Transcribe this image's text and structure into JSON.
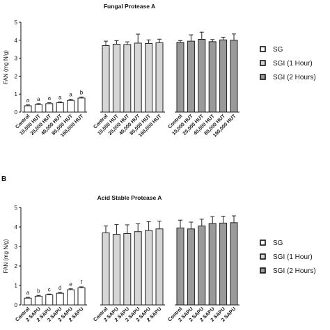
{
  "panel_b_label": "B",
  "legend": [
    {
      "label": "SG",
      "color": "#ffffff"
    },
    {
      "label": "SGI (1 Hour)",
      "color": "#d6d6d6"
    },
    {
      "label": "SGI (2 Hours)",
      "color": "#9a9a9a"
    }
  ],
  "chart_data": [
    {
      "type": "bar",
      "title": "Fungal Protease A",
      "ylabel": "FAN (mg N/g)",
      "ylim": [
        0,
        5
      ],
      "yticks": [
        "0",
        "1",
        "2",
        "3",
        "4",
        "5"
      ],
      "categories": [
        "Control",
        "10,000 HUT",
        "20,000 HUT",
        "40,000 HUT",
        "80,000 HUT",
        "160,000 HUT"
      ],
      "series": [
        {
          "name": "SG",
          "color": "#ffffff",
          "values": [
            0.35,
            0.42,
            0.47,
            0.52,
            0.65,
            0.78
          ],
          "errors": [
            0.05,
            0.05,
            0.05,
            0.05,
            0.06,
            0.06
          ],
          "letters": [
            "a",
            "a",
            "a",
            "a",
            "a",
            "b"
          ]
        },
        {
          "name": "SGI (1 Hour)",
          "color": "#d6d6d6",
          "values": [
            3.7,
            3.78,
            3.76,
            3.84,
            3.82,
            3.86
          ],
          "errors": [
            0.25,
            0.2,
            0.15,
            0.5,
            0.2,
            0.2
          ]
        },
        {
          "name": "SGI (2 Hours)",
          "color": "#9a9a9a",
          "values": [
            3.88,
            3.95,
            4.05,
            3.92,
            4.02,
            4.0
          ],
          "errors": [
            0.1,
            0.35,
            0.4,
            0.12,
            0.15,
            0.35
          ]
        }
      ]
    },
    {
      "type": "bar",
      "title": "Acid Stable Protease A",
      "ylabel": "FAN (mg N/g)",
      "ylim": [
        0,
        5
      ],
      "yticks": [
        "0",
        "1",
        "2",
        "3",
        "4",
        "5"
      ],
      "categories": [
        "Control",
        "2 SAPU",
        "2 SAPU",
        "2 SAPU",
        "2 SAPU",
        "2 SAPU"
      ],
      "series": [
        {
          "name": "SG",
          "color": "#ffffff",
          "values": [
            0.35,
            0.45,
            0.52,
            0.6,
            0.78,
            0.88
          ],
          "errors": [
            0.04,
            0.04,
            0.04,
            0.04,
            0.05,
            0.05
          ],
          "letters": [
            "a",
            "b",
            "c",
            "d",
            "e",
            "f"
          ]
        },
        {
          "name": "SGI (1 Hour)",
          "color": "#d6d6d6",
          "values": [
            3.7,
            3.62,
            3.66,
            3.76,
            3.82,
            3.9
          ],
          "errors": [
            0.35,
            0.5,
            0.45,
            0.4,
            0.45,
            0.4
          ]
        },
        {
          "name": "SGI (2 Hours)",
          "color": "#9a9a9a",
          "values": [
            3.95,
            3.9,
            4.05,
            4.18,
            4.2,
            4.22
          ],
          "errors": [
            0.4,
            0.35,
            0.35,
            0.35,
            0.35,
            0.35
          ]
        }
      ]
    }
  ]
}
